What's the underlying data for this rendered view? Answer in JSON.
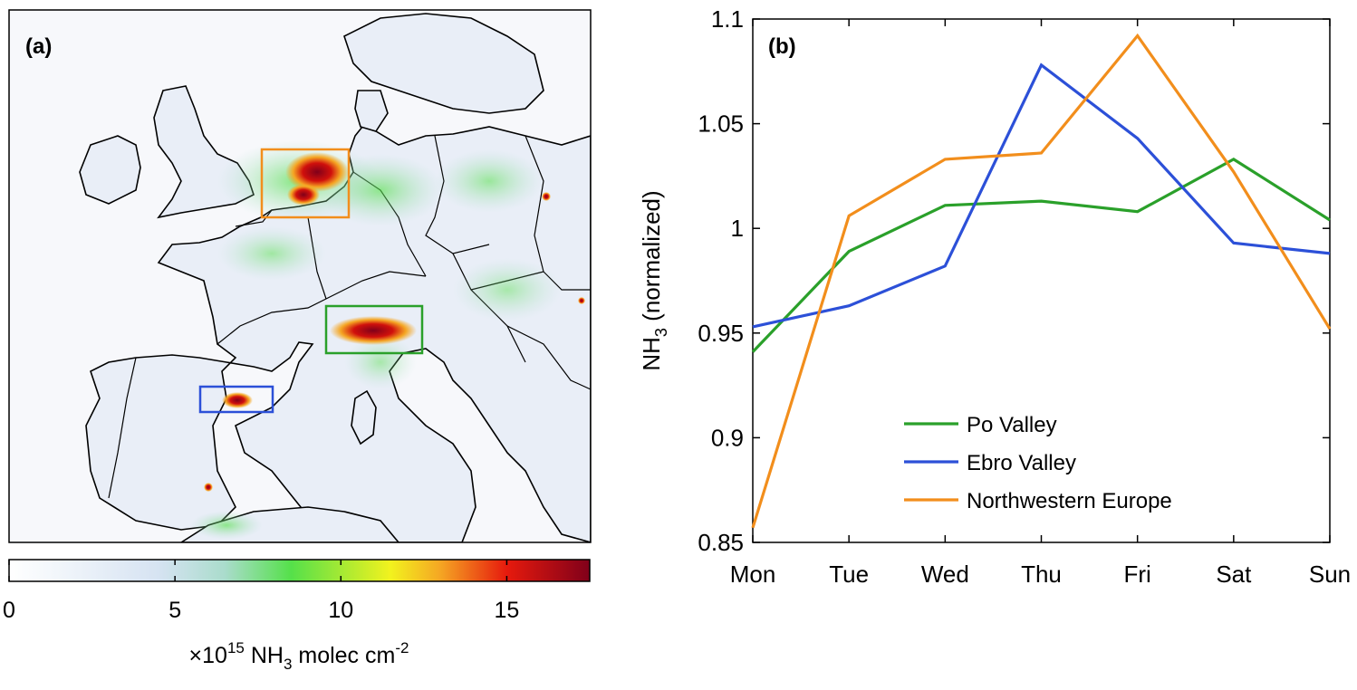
{
  "panel_a": {
    "label": "(a)",
    "colorbar": {
      "ticks": [
        0,
        5,
        10,
        15
      ],
      "max": 17.5,
      "stops": [
        {
          "v": 0,
          "color": "#ffffff"
        },
        {
          "v": 4.5,
          "color": "#d6e3f2"
        },
        {
          "v": 6.5,
          "color": "#aadccc"
        },
        {
          "v": 8.5,
          "color": "#55e04a"
        },
        {
          "v": 11.5,
          "color": "#f2f21e"
        },
        {
          "v": 13.0,
          "color": "#f5a623"
        },
        {
          "v": 15.0,
          "color": "#e61a0d"
        },
        {
          "v": 17.5,
          "color": "#80001a"
        }
      ],
      "label_prefix": "×10",
      "label_exp": "15",
      "label_species_main": "NH",
      "label_species_sub": "3",
      "label_units_main": " molec cm",
      "label_units_exp": "-2"
    },
    "regions": [
      {
        "name": "Northwestern Europe",
        "color": "#f28e1c"
      },
      {
        "name": "Po Valley",
        "color": "#2aa02a"
      },
      {
        "name": "Ebro Valley",
        "color": "#2c50d8"
      }
    ]
  },
  "chart_data": {
    "type": "line",
    "panel_label": "(b)",
    "title": "",
    "xlabel": "",
    "ylabel_main": "NH",
    "ylabel_sub": "3",
    "ylabel_rest": " (normalized)",
    "categories": [
      "Mon",
      "Tue",
      "Wed",
      "Thu",
      "Fri",
      "Sat",
      "Sun"
    ],
    "ylim": [
      0.85,
      1.1
    ],
    "yticks": [
      0.85,
      0.9,
      0.95,
      1,
      1.05,
      1.1
    ],
    "ytick_labels": [
      "0.85",
      "0.9",
      "0.95",
      "1",
      "1.05",
      "1.1"
    ],
    "grid": false,
    "legend_position": "bottom-center",
    "series": [
      {
        "name": "Po Valley",
        "color": "#2aa02a",
        "values": [
          0.941,
          0.989,
          1.011,
          1.013,
          1.008,
          1.033,
          1.004
        ]
      },
      {
        "name": "Ebro Valley",
        "color": "#2c50d8",
        "values": [
          0.953,
          0.963,
          0.982,
          1.078,
          1.043,
          0.993,
          0.988
        ]
      },
      {
        "name": "Northwestern Europe",
        "color": "#f28e1c",
        "values": [
          0.857,
          1.006,
          1.033,
          1.036,
          1.092,
          1.027,
          0.952
        ]
      }
    ]
  }
}
